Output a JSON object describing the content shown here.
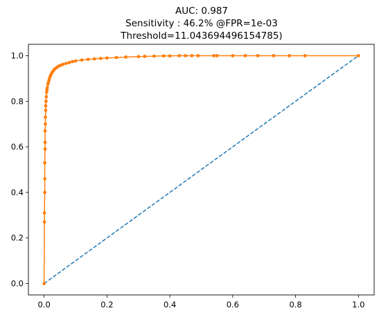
{
  "chart_data": {
    "type": "line",
    "title_lines": [
      "AUC: 0.987",
      "Sensitivity : 46.2% @FPR=1e-03",
      "Threshold=11.043694496154785)"
    ],
    "xlabel": "",
    "ylabel": "",
    "xlim": [
      -0.05,
      1.05
    ],
    "ylim": [
      -0.05,
      1.05
    ],
    "x_ticks": [
      0.0,
      0.2,
      0.4,
      0.6,
      0.8,
      1.0
    ],
    "y_ticks": [
      0.0,
      0.2,
      0.4,
      0.6,
      0.8,
      1.0
    ],
    "x_tick_labels": [
      "0.0",
      "0.2",
      "0.4",
      "0.6",
      "0.8",
      "1.0"
    ],
    "y_tick_labels": [
      "0.0",
      "0.2",
      "0.4",
      "0.6",
      "0.8",
      "1.0"
    ],
    "grid": false,
    "series": [
      {
        "role": "chance-diagonal",
        "style": "dashed",
        "color": "#1f77b4",
        "x": [
          0,
          1
        ],
        "y": [
          0,
          1
        ]
      },
      {
        "role": "roc-curve",
        "style": "solid-with-markers",
        "color": "#ff7f0e",
        "x": [
          0,
          0.001,
          0.001,
          0.002,
          0.002,
          0.002,
          0.003,
          0.003,
          0.003,
          0.004,
          0.004,
          0.005,
          0.005,
          0.006,
          0.007,
          0.008,
          0.009,
          0.01,
          0.012,
          0.014,
          0.016,
          0.018,
          0.02,
          0.023,
          0.026,
          0.03,
          0.034,
          0.04,
          0.046,
          0.053,
          0.06,
          0.07,
          0.08,
          0.09,
          0.1,
          0.12,
          0.14,
          0.16,
          0.18,
          0.2,
          0.23,
          0.26,
          0.3,
          0.32,
          0.35,
          0.38,
          0.4,
          0.43,
          0.45,
          0.47,
          0.49,
          0.54,
          0.55,
          0.6,
          0.64,
          0.68,
          0.73,
          0.78,
          0.83,
          1.0
        ],
        "y": [
          0,
          0.27,
          0.31,
          0.4,
          0.46,
          0.53,
          0.59,
          0.62,
          0.67,
          0.7,
          0.73,
          0.76,
          0.78,
          0.8,
          0.82,
          0.84,
          0.85,
          0.86,
          0.875,
          0.885,
          0.895,
          0.905,
          0.912,
          0.92,
          0.928,
          0.935,
          0.942,
          0.948,
          0.954,
          0.958,
          0.962,
          0.966,
          0.97,
          0.974,
          0.977,
          0.981,
          0.984,
          0.986,
          0.988,
          0.99,
          0.992,
          0.994,
          0.996,
          0.997,
          0.998,
          0.999,
          0.999,
          1.0,
          1.0,
          1.0,
          1.0,
          1.0,
          1.0,
          1.0,
          1.0,
          1.0,
          1.0,
          1.0,
          1.0,
          1.0
        ]
      }
    ]
  }
}
